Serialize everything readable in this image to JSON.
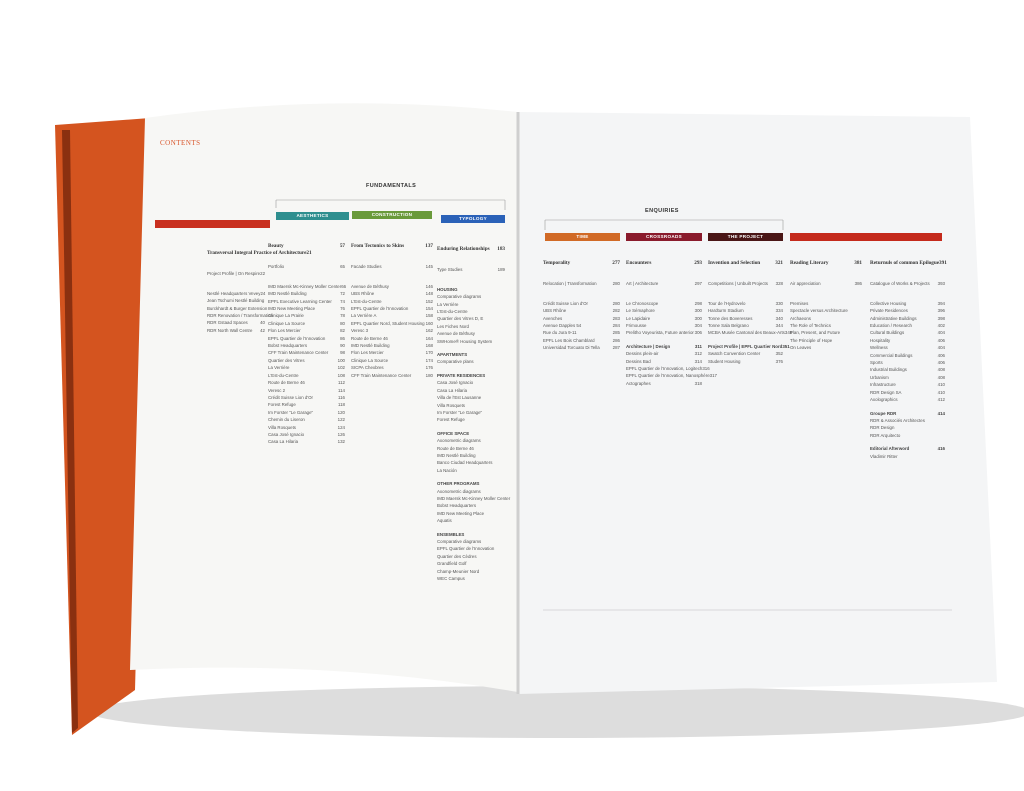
{
  "left_page": {
    "title": "CONTENTS",
    "section": "FUNDAMENTALS",
    "tabs": [
      "AESTHETICS",
      "CONSTRUCTION",
      "TYPOLOGY"
    ],
    "columns": [
      {
        "title": {
          "text": "Transversal Integral Practice of Architecture",
          "page": 21
        },
        "subtitle": {
          "text": "Project Profile | On Respire",
          "page": 22
        },
        "items": [
          {
            "text": "Nestlé Headquarters Vevey",
            "page": 24
          },
          {
            "text": "Jean Tschumi Nestlé Building"
          },
          {
            "text": "Burckhardt & Burger Extension"
          },
          {
            "text": "RDR Renovation / Transformation"
          },
          {
            "text": "RDR Gstaad Spaces",
            "page": 40
          },
          {
            "text": "RDR North Wall Centre",
            "page": 42
          }
        ]
      },
      {
        "title": {
          "text": "Beauty",
          "page": 57
        },
        "subtitle": {
          "text": "Portfolio",
          "page": 65
        },
        "items": [
          {
            "text": "IMD Maersk Mc-Kinney Moller Center",
            "page": 66
          },
          {
            "text": "IMD Nestlé Building",
            "page": 72
          },
          {
            "text": "EPFL Executive Learning Center",
            "page": 74
          },
          {
            "text": "IMD New Meeting Place",
            "page": 76
          },
          {
            "text": "Clinique La Prairie",
            "page": 78
          },
          {
            "text": "Clinique La Source",
            "page": 80
          },
          {
            "text": "Flon Les Mercier",
            "page": 82
          },
          {
            "text": "EPFL Quartier de l'Innovation",
            "page": 86
          },
          {
            "text": "Bobst Headquarters",
            "page": 90
          },
          {
            "text": "CFF Train Maintenance Center",
            "page": 98
          },
          {
            "text": "Quartier des Vitres",
            "page": 100
          },
          {
            "text": "La Verrière",
            "page": 102
          },
          {
            "text": "L'Est-du-Centre",
            "page": 108
          },
          {
            "text": "Route de Berne 46",
            "page": 112
          },
          {
            "text": "Veresc 2",
            "page": 114
          },
          {
            "text": "Crédit Suisse Lion d'Or",
            "page": 116
          },
          {
            "text": "Forest Refuge",
            "page": 118
          },
          {
            "text": "Im Forster \"Le Garage\"",
            "page": 120
          },
          {
            "text": "Chemin du Liseron",
            "page": 122
          },
          {
            "text": "Villa Rosquets",
            "page": 124
          },
          {
            "text": "Casa José Ignacio",
            "page": 126
          },
          {
            "text": "Casa La Hilaria",
            "page": 132
          }
        ]
      },
      {
        "title": {
          "text": "From Tectonics to Skins",
          "page": 137
        },
        "subtitle": {
          "text": "Facade Studies",
          "page": 145
        },
        "items": [
          {
            "text": "Avenue de Béthusy",
            "page": 146
          },
          {
            "text": "UBS Rhône",
            "page": 148
          },
          {
            "text": "L'Est-du-Centre",
            "page": 152
          },
          {
            "text": "EPFL Quartier de l'Innovation",
            "page": 154
          },
          {
            "text": "La Verrière A",
            "page": 158
          },
          {
            "text": "EPFL Quartier Nord, Student Housing",
            "page": 160
          },
          {
            "text": "Veresc 3",
            "page": 162
          },
          {
            "text": "Route de Berne 46",
            "page": 164
          },
          {
            "text": "IMD Nestlé Building",
            "page": 168
          },
          {
            "text": "Flon Les Mercier",
            "page": 170
          },
          {
            "text": "Clinique La Source",
            "page": 174
          },
          {
            "text": "SICPA Chexbres",
            "page": 176
          },
          {
            "text": "CFF Train Maintenance Center",
            "page": 180
          }
        ]
      },
      {
        "title": {
          "text": "Enduring Relationships",
          "page": 183
        },
        "subtitle": {
          "text": "Type Studies",
          "page": 189
        },
        "items": [
          {
            "heading": "HOUSING"
          },
          {
            "text": "Comparative diagrams"
          },
          {
            "text": "La Verrière"
          },
          {
            "text": "L'Est-du-Centre"
          },
          {
            "text": "Quartier des Vitres D, E"
          },
          {
            "text": "Les Fiches Nord"
          },
          {
            "text": "Avenue de Béthusy"
          },
          {
            "text": "SWHome® Housing System"
          },
          {
            "heading": "APARTMENTS"
          },
          {
            "text": "Comparative plans"
          },
          {
            "heading": "PRIVATE RESIDENCES"
          },
          {
            "text": "Casa José Ignacio"
          },
          {
            "text": "Casa La Hilaria"
          },
          {
            "text": "Villa de l'Est Lausanne"
          },
          {
            "text": "Villa Rosquets"
          },
          {
            "text": "Im Forster \"Le Garage\""
          },
          {
            "text": "Forest Refuge"
          },
          {
            "heading": "OFFICE SPACE"
          },
          {
            "text": "Axonometric diagrams"
          },
          {
            "text": "Route de Berne 46"
          },
          {
            "text": "IMD Nestlé Building"
          },
          {
            "text": "Banco Ciudad Headquarters"
          },
          {
            "text": "La Nación"
          },
          {
            "heading": "OTHER PROGRAMS"
          },
          {
            "text": "Axonometric diagrams"
          },
          {
            "text": "IMD Maersk Mc-Kinney Moller Center"
          },
          {
            "text": "Bobst Headquarters"
          },
          {
            "text": "IMD New Meeting Place"
          },
          {
            "text": "Aquatis"
          },
          {
            "heading": "ENSEMBLES"
          },
          {
            "text": "Comparative diagrams"
          },
          {
            "text": "EPFL Quartier de l'Innovation"
          },
          {
            "text": "Quartier des Cèdres"
          },
          {
            "text": "Grandfield Golf"
          },
          {
            "text": "Champ-Meunier Nord"
          },
          {
            "text": "WEC Campus"
          }
        ]
      }
    ]
  },
  "right_page": {
    "section": "ENQUIRIES",
    "tabs": [
      "TIME",
      "CROSSROADS",
      "THE PROJECT"
    ],
    "columns": [
      {
        "title": {
          "text": "Temporality",
          "page": 277
        },
        "subtitle": {
          "text": "Relocation | Transformation",
          "page": 280
        },
        "items": [
          {
            "text": "Crédit Suisse Lion d'Or",
            "page": 280
          },
          {
            "text": "UBS Rhône",
            "page": 282
          },
          {
            "text": "Avenches",
            "page": 283
          },
          {
            "text": "Avenue Dapples 54",
            "page": 284
          },
          {
            "text": "Rue du Jura 9-11",
            "page": 285
          },
          {
            "text": "EPFL Les Bois Chamblard",
            "page": 286
          },
          {
            "text": "Universidad Torcuato Di Tella",
            "page": 287
          }
        ]
      },
      {
        "title": {
          "text": "Encounters",
          "page": 293
        },
        "subtitle": {
          "text": "Art | Architecture",
          "page": 297
        },
        "items": [
          {
            "text": "Le Chronoscope",
            "page": 298
          },
          {
            "text": "Le Sémaphore",
            "page": 300
          },
          {
            "text": "Le Lapidaire",
            "page": 300
          },
          {
            "text": "Frimousse",
            "page": 304
          },
          {
            "text": "Prelitho Voyeurista, Future anterior",
            "page": 306
          },
          {
            "heading": "Architecture | Design",
            "page": 311
          },
          {
            "text": "Dessins plein-air",
            "page": 312
          },
          {
            "text": "Dessins Bad",
            "page": 314
          },
          {
            "text": "EPFL Quartier de l'Innovation, Logitech",
            "page": 316
          },
          {
            "text": "EPFL Quartier de l'Innovation, Nanosphère",
            "page": 317
          },
          {
            "text": "Actographes",
            "page": 318
          }
        ]
      },
      {
        "title": {
          "text": "Invention and Selection",
          "page": 321
        },
        "subtitle": {
          "text": "Competitions | Unbuilt Projects",
          "page": 328
        },
        "items": [
          {
            "text": "Tour de l'Hydrovelo",
            "page": 330
          },
          {
            "text": "Hardturm Stadium",
            "page": 334
          },
          {
            "text": "Tonne des Boveresses",
            "page": 340
          },
          {
            "text": "Tonne Sala Belgrano",
            "page": 344
          },
          {
            "text": "MCBA Musée Cantonal des Beaux-Arts",
            "page": 348
          },
          {
            "heading": "Project Profile | EPFL Quartier Nord",
            "page": 351
          },
          {
            "text": "Swatch Convention Center",
            "page": 352
          },
          {
            "text": "Student Housing",
            "page": 376
          }
        ]
      },
      {
        "title": {
          "text": "Reading Literary",
          "page": 381
        },
        "subtitle": {
          "text": "Air appreciation",
          "page": 386
        },
        "items": [
          {
            "text": "Premises"
          },
          {
            "text": "Spectacle versus Architecture"
          },
          {
            "text": "Archaeons"
          },
          {
            "text": "The Role of Technics"
          },
          {
            "text": "Plan, Present, and Future"
          },
          {
            "text": "The Principle of Hope"
          },
          {
            "text": "On Leaves"
          }
        ]
      },
      {
        "title": {
          "text": "Returnuls of common Epilogue",
          "page": 391
        },
        "subtitle": {
          "text": "Catalogue of Works & Projects",
          "page": 393
        },
        "items": [
          {
            "text": "Collective Housing",
            "page": 394
          },
          {
            "text": "Private Residences",
            "page": 396
          },
          {
            "text": "Administrative Buildings",
            "page": 398
          },
          {
            "text": "Education / Research",
            "page": 402
          },
          {
            "text": "Cultural Buildings",
            "page": 404
          },
          {
            "text": "Hospitality",
            "page": 406
          },
          {
            "text": "Wellness",
            "page": 404
          },
          {
            "text": "Commercial Buildings",
            "page": 406
          },
          {
            "text": "Sports",
            "page": 406
          },
          {
            "text": "Industrial Buildings",
            "page": 408
          },
          {
            "text": "Urbanism",
            "page": 408
          },
          {
            "text": "Infrastructure",
            "page": 410
          },
          {
            "text": "RDR Design SA",
            "page": 410
          },
          {
            "text": "Axolographics",
            "page": 412
          },
          {
            "heading": "Groupe RDR",
            "page": 414
          },
          {
            "text": "RDR & Associés Architectes"
          },
          {
            "text": "RDR Design"
          },
          {
            "text": "RDR Arquitecto"
          },
          {
            "heading": "Editorial Afterword",
            "page": 416
          },
          {
            "text": "Vladimir Ritter"
          }
        ]
      }
    ]
  }
}
